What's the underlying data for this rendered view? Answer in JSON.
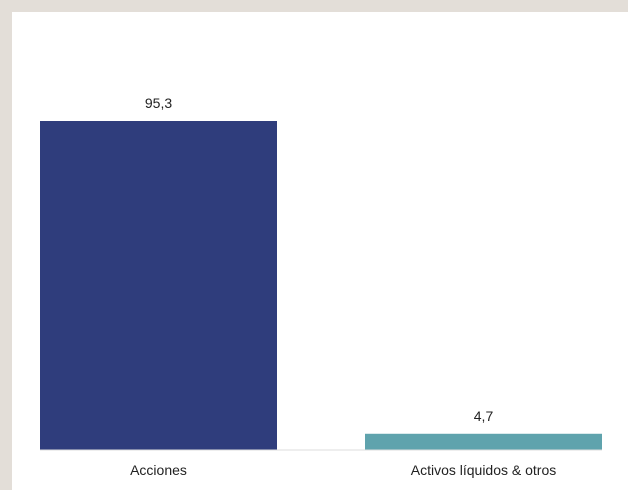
{
  "chart_data": {
    "type": "bar",
    "categories": [
      "Acciones",
      "Activos líquidos & otros"
    ],
    "values": [
      95.3,
      4.7
    ],
    "value_labels": [
      "95,3",
      "4,7"
    ],
    "colors": [
      "#2f3d7c",
      "#5fa3ad"
    ],
    "ylim": [
      0,
      100
    ],
    "grid": false,
    "legend": "none"
  }
}
